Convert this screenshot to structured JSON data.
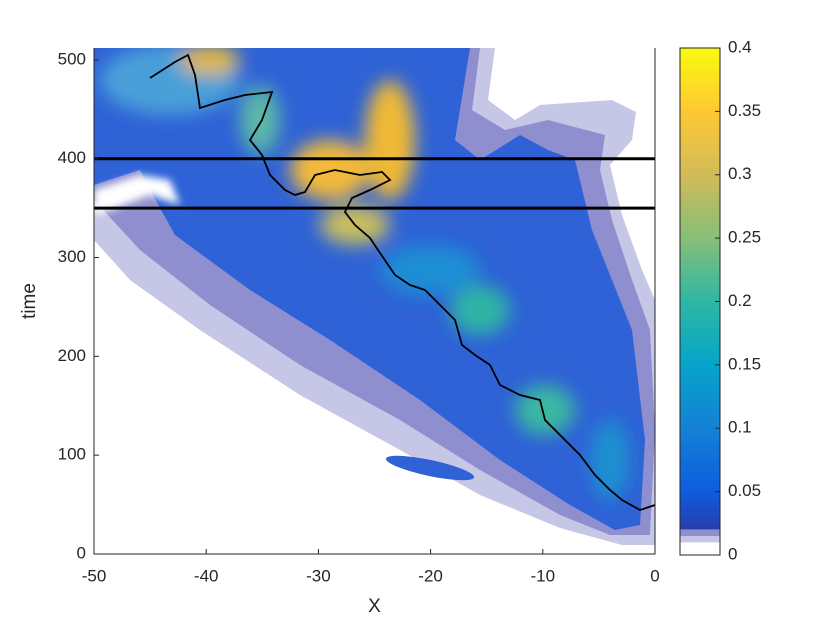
{
  "chart_data": {
    "type": "contour",
    "xlabel": "X",
    "ylabel": "time",
    "xlim": [
      -50,
      0
    ],
    "xticks": [
      -50,
      -40,
      -30,
      -20,
      -10,
      0
    ],
    "ylim": [
      0,
      512
    ],
    "yticks": [
      0,
      100,
      200,
      300,
      400,
      500
    ],
    "hlines": [
      400,
      350
    ],
    "colorbar": {
      "clim": [
        0,
        0.4
      ],
      "ticks": [
        0,
        0.05,
        0.1,
        0.15,
        0.2,
        0.25,
        0.3,
        0.35,
        0.4
      ],
      "colormap": [
        "#352a87",
        "#0f5cdd",
        "#1481d6",
        "#06a4ca",
        "#2eb7a4",
        "#87bf77",
        "#d1bb59",
        "#fec832",
        "#f9fb0e"
      ]
    }
  }
}
